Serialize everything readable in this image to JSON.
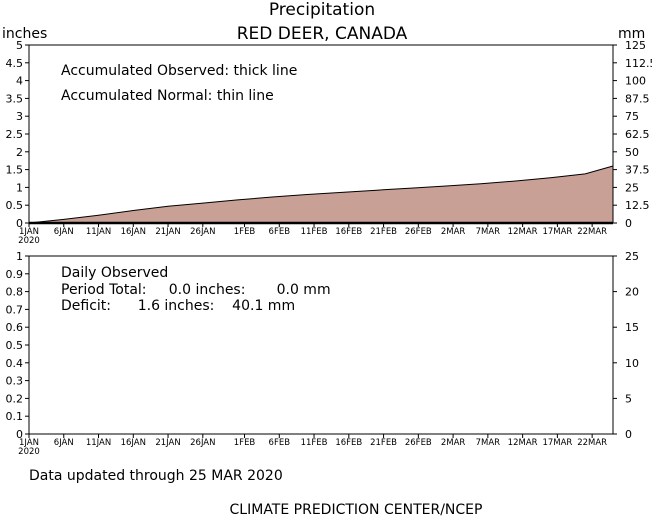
{
  "header": {
    "title": "Precipitation",
    "subtitle": "RED DEER, CANADA",
    "left_unit": "inches",
    "right_unit": "mm"
  },
  "top_notes": [
    "Accumulated Observed: thick line",
    "Accumulated Normal: thin line"
  ],
  "bottom_notes": {
    "line1": "Daily Observed",
    "line2": "Period Total:     0.0 inches:       0.0 mm",
    "line3": "Deficit:      1.6 inches:    40.1 mm"
  },
  "footer": {
    "updated": "Data updated through 25 MAR 2020",
    "credit": "CLIMATE PREDICTION CENTER/NCEP"
  },
  "colors": {
    "fill": "#c8a096",
    "axis": "#000000"
  },
  "chart_data": [
    {
      "type": "area",
      "name": "accumulated",
      "x_start": "2020-01-01",
      "x_end": "2020-03-25",
      "x_ticks": [
        {
          "date": "2020-01-01",
          "label": "1JAN",
          "sublabel": "2020"
        },
        {
          "date": "2020-01-06",
          "label": "6JAN"
        },
        {
          "date": "2020-01-11",
          "label": "11JAN"
        },
        {
          "date": "2020-01-16",
          "label": "16JAN"
        },
        {
          "date": "2020-01-21",
          "label": "21JAN"
        },
        {
          "date": "2020-01-26",
          "label": "26JAN"
        },
        {
          "date": "2020-02-01",
          "label": "1FEB"
        },
        {
          "date": "2020-02-06",
          "label": "6FEB"
        },
        {
          "date": "2020-02-11",
          "label": "11FEB"
        },
        {
          "date": "2020-02-16",
          "label": "16FEB"
        },
        {
          "date": "2020-02-21",
          "label": "21FEB"
        },
        {
          "date": "2020-02-26",
          "label": "26FEB"
        },
        {
          "date": "2020-03-02",
          "label": "2MAR"
        },
        {
          "date": "2020-03-07",
          "label": "7MAR"
        },
        {
          "date": "2020-03-12",
          "label": "12MAR"
        },
        {
          "date": "2020-03-17",
          "label": "17MAR"
        },
        {
          "date": "2020-03-22",
          "label": "22MAR"
        }
      ],
      "ylim": [
        0,
        5
      ],
      "y_ticks": [
        "0",
        "0.5",
        "1",
        "1.5",
        "2",
        "2.5",
        "3",
        "3.5",
        "4",
        "4.5",
        "5"
      ],
      "y2lim": [
        0,
        125
      ],
      "y2_ticks": [
        "0",
        "12.5",
        "25",
        "37.5",
        "50",
        "62.5",
        "75",
        "87.5",
        "100",
        "112.5",
        "125"
      ],
      "normal_inches": [
        {
          "date": "2020-01-01",
          "y": 0.0
        },
        {
          "date": "2020-01-06",
          "y": 0.1
        },
        {
          "date": "2020-01-11",
          "y": 0.22
        },
        {
          "date": "2020-01-16",
          "y": 0.35
        },
        {
          "date": "2020-01-21",
          "y": 0.47
        },
        {
          "date": "2020-01-26",
          "y": 0.56
        },
        {
          "date": "2020-01-31",
          "y": 0.65
        },
        {
          "date": "2020-02-05",
          "y": 0.73
        },
        {
          "date": "2020-02-10",
          "y": 0.8
        },
        {
          "date": "2020-02-15",
          "y": 0.86
        },
        {
          "date": "2020-02-20",
          "y": 0.92
        },
        {
          "date": "2020-02-25",
          "y": 0.98
        },
        {
          "date": "2020-03-01",
          "y": 1.04
        },
        {
          "date": "2020-03-06",
          "y": 1.1
        },
        {
          "date": "2020-03-11",
          "y": 1.18
        },
        {
          "date": "2020-03-16",
          "y": 1.27
        },
        {
          "date": "2020-03-21",
          "y": 1.38
        },
        {
          "date": "2020-03-25",
          "y": 1.6
        }
      ],
      "observed_inches": [
        {
          "date": "2020-01-01",
          "y": 0.0
        },
        {
          "date": "2020-03-25",
          "y": 0.0
        }
      ]
    },
    {
      "type": "bar",
      "name": "daily",
      "ylim": [
        0,
        1
      ],
      "y_ticks": [
        "0",
        "0.1",
        "0.2",
        "0.3",
        "0.4",
        "0.5",
        "0.6",
        "0.7",
        "0.8",
        "0.9",
        "1"
      ],
      "y2lim": [
        0,
        25
      ],
      "y2_ticks": [
        "0",
        "5",
        "10",
        "15",
        "20",
        "25"
      ],
      "values": []
    }
  ]
}
